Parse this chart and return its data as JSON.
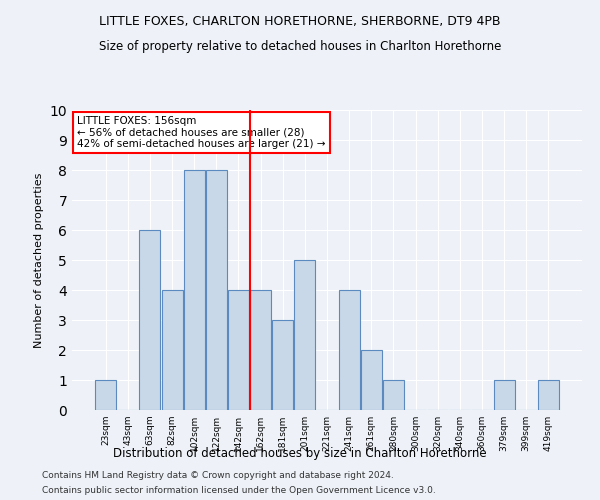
{
  "title1": "LITTLE FOXES, CHARLTON HORETHORNE, SHERBORNE, DT9 4PB",
  "title2": "Size of property relative to detached houses in Charlton Horethorne",
  "xlabel": "Distribution of detached houses by size in Charlton Horethorne",
  "ylabel": "Number of detached properties",
  "categories": [
    "23sqm",
    "43sqm",
    "63sqm",
    "82sqm",
    "102sqm",
    "122sqm",
    "142sqm",
    "162sqm",
    "181sqm",
    "201sqm",
    "221sqm",
    "241sqm",
    "261sqm",
    "280sqm",
    "300sqm",
    "320sqm",
    "340sqm",
    "360sqm",
    "379sqm",
    "399sqm",
    "419sqm"
  ],
  "values": [
    1,
    0,
    6,
    4,
    8,
    8,
    4,
    4,
    3,
    5,
    0,
    4,
    2,
    1,
    0,
    0,
    0,
    0,
    1,
    0,
    1
  ],
  "bar_color": "#c8d8e8",
  "bar_edge_color": "#5a8abf",
  "red_line_x": 6.5,
  "annotation_text": "LITTLE FOXES: 156sqm\n← 56% of detached houses are smaller (28)\n42% of semi-detached houses are larger (21) →",
  "annotation_box_color": "white",
  "annotation_box_edge": "red",
  "footer1": "Contains HM Land Registry data © Crown copyright and database right 2024.",
  "footer2": "Contains public sector information licensed under the Open Government Licence v3.0.",
  "background_color": "#eef2f8",
  "ylim": [
    0,
    10
  ],
  "yticks": [
    0,
    1,
    2,
    3,
    4,
    5,
    6,
    7,
    8,
    9,
    10
  ]
}
